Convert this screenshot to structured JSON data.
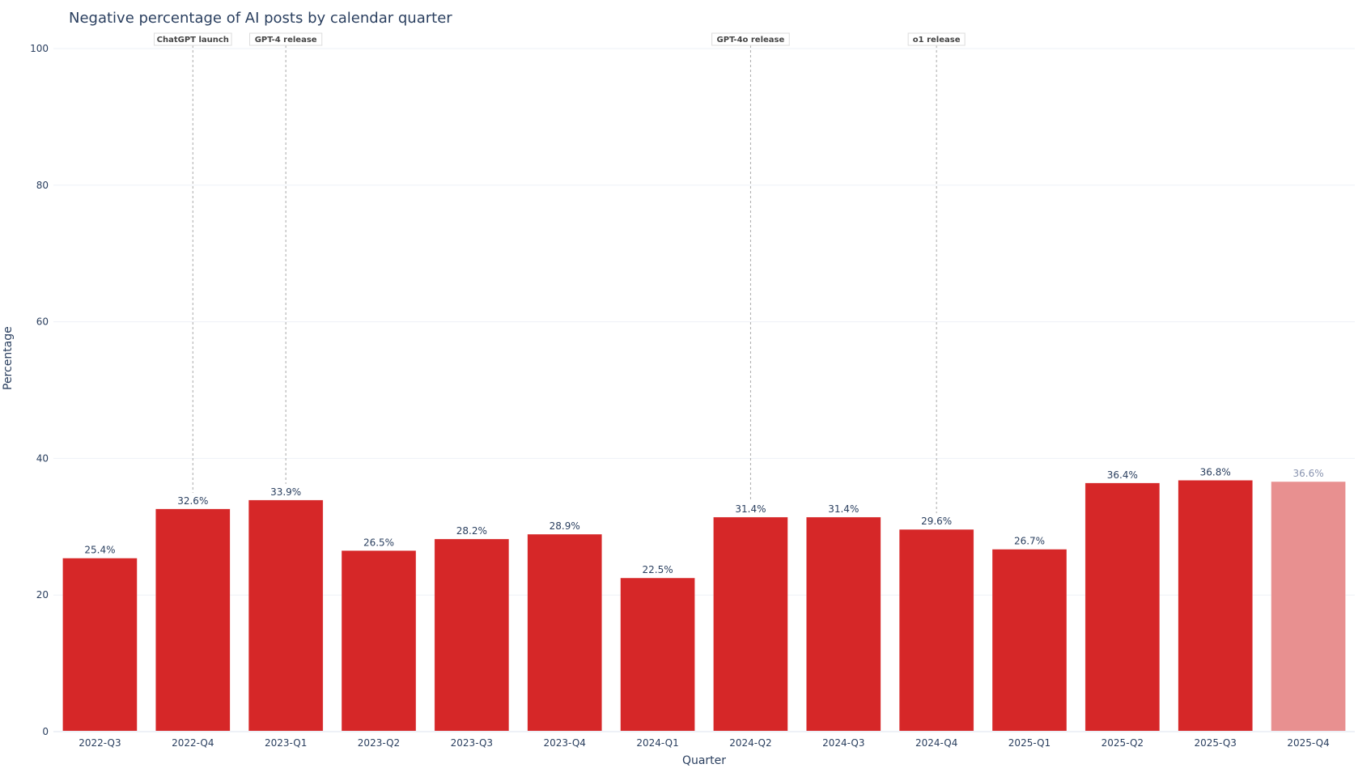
{
  "title": "Negative percentage of AI posts by calendar quarter",
  "colors": {
    "bar": "#d62728",
    "bar_partial": "#e89090",
    "text": "#2a3f5f",
    "grid": "#eef1f7",
    "annotation_line": "#aaaaaa"
  },
  "chart_data": {
    "type": "bar",
    "title": "Negative percentage of AI posts by calendar quarter",
    "xlabel": "Quarter",
    "ylabel": "Percentage",
    "ylim": [
      0,
      100
    ],
    "yticks": [
      0,
      20,
      40,
      60,
      80,
      100
    ],
    "grid": true,
    "legend": null,
    "categories": [
      "2022-Q3",
      "2022-Q4",
      "2023-Q1",
      "2023-Q2",
      "2023-Q3",
      "2023-Q4",
      "2024-Q1",
      "2024-Q2",
      "2024-Q3",
      "2024-Q4",
      "2025-Q1",
      "2025-Q2",
      "2025-Q3",
      "2025-Q4"
    ],
    "values": [
      25.4,
      32.6,
      33.9,
      26.5,
      28.2,
      28.9,
      22.5,
      31.4,
      31.4,
      29.6,
      26.7,
      36.4,
      36.8,
      36.6
    ],
    "labels": [
      "25.4%",
      "32.6%",
      "33.9%",
      "26.5%",
      "28.2%",
      "28.9%",
      "22.5%",
      "31.4%",
      "31.4%",
      "29.6%",
      "26.7%",
      "36.4%",
      "36.8%",
      "36.6%"
    ],
    "partial": [
      false,
      false,
      false,
      false,
      false,
      false,
      false,
      false,
      false,
      false,
      false,
      false,
      false,
      true
    ],
    "annotations": [
      {
        "category": "2022-Q4",
        "text": "ChatGPT launch"
      },
      {
        "category": "2023-Q1",
        "text": "GPT-4 release"
      },
      {
        "category": "2024-Q2",
        "text": "GPT-4o release"
      },
      {
        "category": "2024-Q4",
        "text": "o1 release"
      }
    ]
  }
}
